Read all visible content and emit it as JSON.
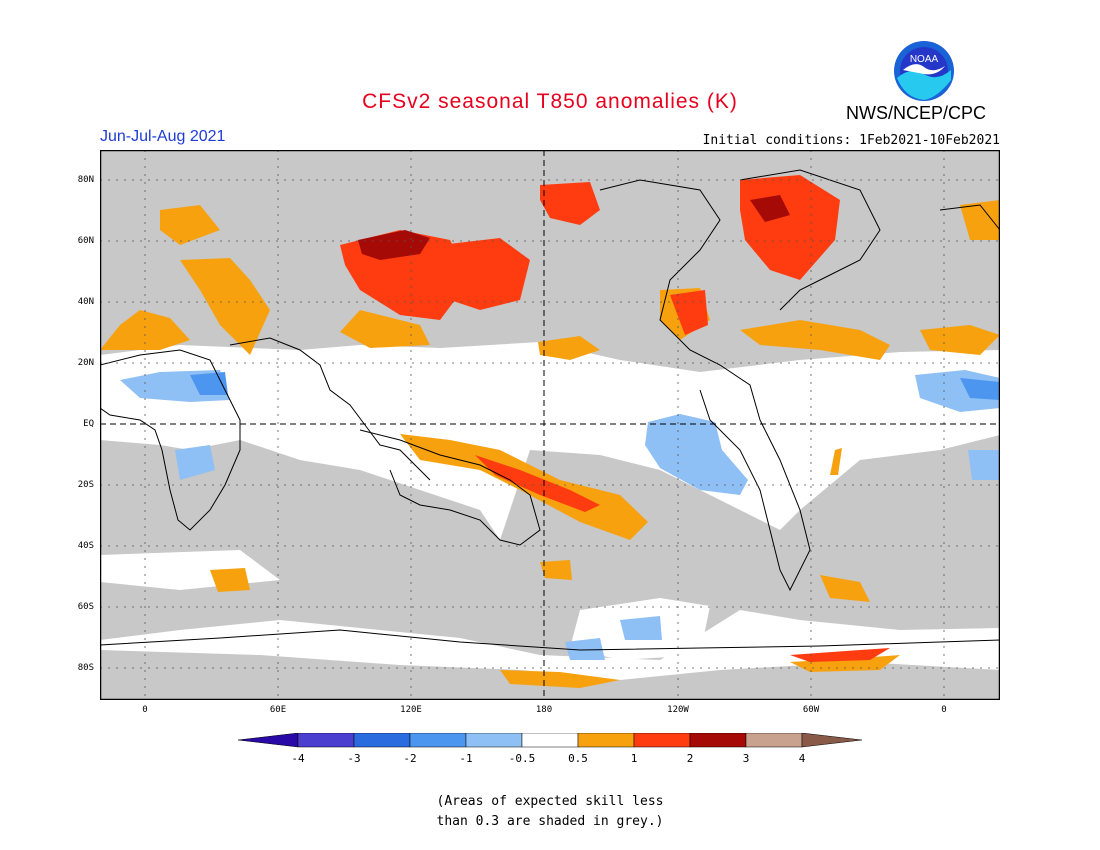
{
  "header": {
    "title": "CFSv2 seasonal T850 anomalies (K)",
    "agency": "NWS/NCEP/CPC",
    "logo_text": "NOAA",
    "season": "Jun-Jul-Aug 2021",
    "initial_conditions": "Initial conditions: 1Feb2021-10Feb2021"
  },
  "map": {
    "lat_labels": [
      "80N",
      "60N",
      "40N",
      "20N",
      "EQ",
      "20S",
      "40S",
      "60S",
      "80S"
    ],
    "lon_labels": [
      "0",
      "60E",
      "120E",
      "180",
      "120W",
      "60W",
      "0"
    ]
  },
  "colorbar": {
    "labels": [
      "-4",
      "-3",
      "-2",
      "-1",
      "-0.5",
      "0.5",
      "1",
      "2",
      "3",
      "4"
    ],
    "colors": [
      "#2a0aa6",
      "#4b3fd0",
      "#2a6be0",
      "#4c96f0",
      "#8ebff5",
      "#ffffff",
      "#f7a10f",
      "#ff3b10",
      "#a50a06",
      "#c9a18f",
      "#8a5a48"
    ]
  },
  "note": {
    "line1": "(Areas of expected skill less",
    "line2": "than 0.3 are shaded in grey.)"
  }
}
